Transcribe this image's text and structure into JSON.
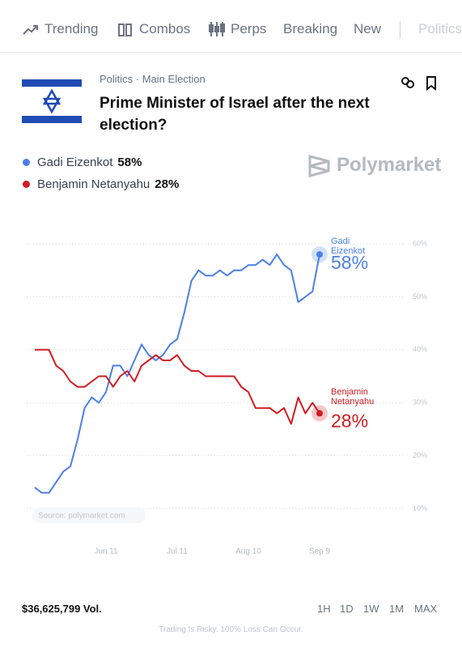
{
  "nav": {
    "items": [
      "Trending",
      "Combos",
      "Perps",
      "Breaking",
      "New",
      "Politics"
    ]
  },
  "market": {
    "category": "Politics · Main Election",
    "title": "Prime Minister of Israel after the next election?",
    "brand": "Polymarket"
  },
  "chart_data": {
    "type": "line",
    "x": [
      "May 12",
      "May 15",
      "May 18",
      "May 21",
      "May 24",
      "May 27",
      "May 30",
      "Jun 2",
      "Jun 5",
      "Jun 8",
      "Jun 11",
      "Jun 14",
      "Jun 17",
      "Jun 20",
      "Jun 23",
      "Jun 26",
      "Jun 29",
      "Jul 2",
      "Jul 5",
      "Jul 8",
      "Jul 11",
      "Jul 14",
      "Jul 17",
      "Jul 20",
      "Jul 23",
      "Jul 26",
      "Jul 29",
      "Aug 1",
      "Aug 4",
      "Aug 7",
      "Aug 10",
      "Aug 13",
      "Aug 16",
      "Aug 19",
      "Aug 22",
      "Aug 25",
      "Aug 28",
      "Aug 31",
      "Sep 3",
      "Sep 6",
      "Sep 9"
    ],
    "series": [
      {
        "name": "Gadi Eizenkot",
        "color": "#4c7fe6",
        "values": [
          14,
          13,
          13,
          15,
          17,
          18,
          23,
          29,
          31,
          30,
          32,
          37,
          37,
          35,
          38,
          41,
          39,
          38,
          39,
          41,
          42,
          47,
          53,
          55,
          54,
          54,
          55,
          54,
          55,
          55,
          56,
          56,
          57,
          56,
          58,
          56,
          55,
          49,
          50,
          51,
          58
        ],
        "value_labels": [
          null,
          null,
          null,
          null,
          null,
          null,
          null,
          null,
          null,
          null,
          null,
          null,
          null,
          null,
          null,
          null,
          null,
          null,
          null,
          null,
          null,
          null,
          null,
          null,
          null,
          null,
          null,
          null,
          null,
          null,
          null,
          null,
          null,
          null,
          null,
          null,
          null,
          null,
          null,
          null,
          "58%"
        ]
      },
      {
        "name": "Benjamin Netanyahu",
        "color": "#d01c22",
        "values": [
          40,
          40,
          40,
          37,
          36,
          34,
          33,
          33,
          34,
          35,
          35,
          33,
          35,
          36,
          34,
          37,
          38,
          39,
          38,
          38,
          39,
          37,
          36,
          36,
          35,
          35,
          35,
          35,
          35,
          33,
          32,
          29,
          29,
          29,
          28,
          29,
          26,
          31,
          28,
          30,
          28
        ],
        "value_labels": [
          null,
          null,
          null,
          null,
          null,
          null,
          null,
          null,
          null,
          null,
          null,
          null,
          null,
          null,
          null,
          null,
          null,
          null,
          null,
          null,
          null,
          null,
          null,
          null,
          null,
          null,
          null,
          null,
          null,
          null,
          null,
          null,
          null,
          null,
          null,
          null,
          null,
          null,
          null,
          null,
          "28%"
        ]
      }
    ],
    "ylim": [
      10,
      60
    ],
    "yticks": [
      {
        "value": 10,
        "label": "10%"
      },
      {
        "value": 20,
        "label": "20%"
      },
      {
        "value": 30,
        "label": "30%"
      },
      {
        "value": 40,
        "label": "40%"
      },
      {
        "value": 50,
        "label": "50%"
      },
      {
        "value": 60,
        "label": "60%"
      }
    ],
    "xticks": [
      "Jun 11",
      "Jul 11",
      "Aug 10",
      "Sep 9"
    ],
    "grid": true,
    "source": "Source: polymarket.com"
  },
  "footer": {
    "volume": "$36,625,799 Vol.",
    "ranges": [
      "1H",
      "1D",
      "1W",
      "1M",
      "MAX"
    ],
    "disclaimer": "Trading Is Risky. 100% Loss Can Occur."
  }
}
